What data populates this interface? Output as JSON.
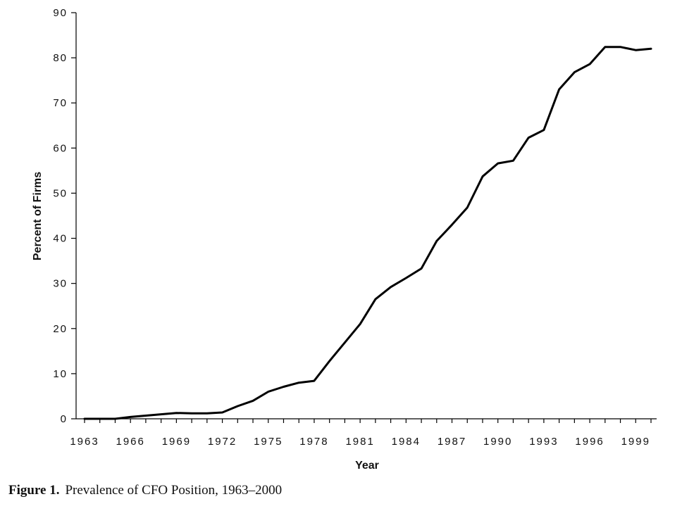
{
  "caption": {
    "label": "Figure 1.",
    "text": "Prevalence of CFO Position, 1963–2000"
  },
  "chart_data": {
    "type": "line",
    "title": "",
    "xlabel": "Year",
    "ylabel": "Percent of Firms",
    "xlim": [
      1963,
      2000
    ],
    "ylim": [
      0,
      90
    ],
    "x_ticks": [
      1963,
      1966,
      1969,
      1972,
      1975,
      1978,
      1981,
      1984,
      1987,
      1990,
      1993,
      1996,
      1999
    ],
    "y_ticks": [
      0,
      10,
      20,
      30,
      40,
      50,
      60,
      70,
      80,
      90
    ],
    "grid": false,
    "legend": "none",
    "series": [
      {
        "color": "#000000",
        "x": [
          1963,
          1964,
          1965,
          1966,
          1967,
          1968,
          1969,
          1970,
          1971,
          1972,
          1973,
          1974,
          1975,
          1976,
          1977,
          1978,
          1979,
          1980,
          1981,
          1982,
          1983,
          1984,
          1985,
          1986,
          1987,
          1988,
          1989,
          1990,
          1991,
          1992,
          1993,
          1994,
          1995,
          1996,
          1997,
          1998,
          1999,
          2000
        ],
        "y": [
          0,
          0,
          0,
          0.4,
          0.7,
          1.0,
          1.3,
          1.2,
          1.2,
          1.4,
          2.8,
          4.0,
          6.0,
          7.1,
          8.0,
          8.4,
          12.8,
          16.9,
          21.0,
          26.5,
          29.2,
          31.2,
          33.3,
          39.4,
          43.0,
          46.8,
          53.7,
          56.6,
          57.2,
          62.3,
          64.0,
          73.0,
          76.8,
          78.6,
          82.4,
          82.4,
          81.7,
          82.0
        ]
      }
    ]
  }
}
